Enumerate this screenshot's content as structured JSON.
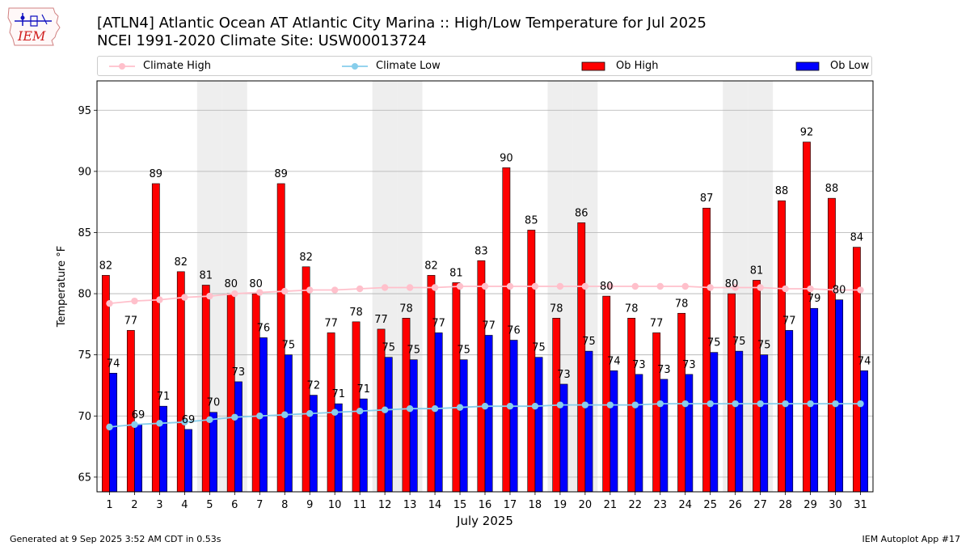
{
  "header": {
    "title_line1": "[ATLN4] Atlantic Ocean  AT Atlantic City Marina :: High/Low Temperature for Jul 2025",
    "title_line2": "NCEI 1991-2020 Climate Site: USW00013724"
  },
  "logo": {
    "text": "IEM",
    "icon": "iowa-state-weather-logo-icon"
  },
  "footer": {
    "left": "Generated at 9 Sep 2025 3:52 AM CDT in 0.53s",
    "right": "IEM Autoplot App #17"
  },
  "legend": {
    "placement": "top",
    "items": [
      {
        "label": "Climate High",
        "kind": "line",
        "color": "#ffc0cb"
      },
      {
        "label": "Climate Low",
        "kind": "line",
        "color": "#87ceeb"
      },
      {
        "label": "Ob High",
        "kind": "bar",
        "color": "#ff0000"
      },
      {
        "label": "Ob Low",
        "kind": "bar",
        "color": "#0000ff"
      }
    ]
  },
  "chart_data": {
    "type": "bar",
    "xlabel": "July 2025",
    "ylabel": "Temperature °F",
    "ylim": [
      63.8,
      97.4
    ],
    "yticks": [
      65,
      70,
      75,
      80,
      85,
      90,
      95
    ],
    "grid": true,
    "weekend_shading_days": [
      5,
      6,
      12,
      13,
      19,
      20,
      26,
      27
    ],
    "shade_color": "#eeeeee",
    "categories": [
      "1",
      "2",
      "3",
      "4",
      "5",
      "6",
      "7",
      "8",
      "9",
      "10",
      "11",
      "12",
      "13",
      "14",
      "15",
      "16",
      "17",
      "18",
      "19",
      "20",
      "21",
      "22",
      "23",
      "24",
      "25",
      "26",
      "27",
      "28",
      "29",
      "30",
      "31"
    ],
    "series": [
      {
        "name": "Ob High",
        "kind": "bar",
        "color": "#ff0000",
        "values": [
          81.5,
          77.0,
          89.0,
          81.8,
          80.7,
          80.0,
          80.0,
          89.0,
          82.2,
          76.8,
          77.7,
          77.1,
          78.0,
          81.5,
          80.9,
          82.7,
          90.3,
          85.2,
          78.0,
          85.8,
          79.8,
          78.0,
          76.8,
          78.4,
          87.0,
          80.0,
          81.1,
          87.6,
          92.4,
          87.8,
          83.8
        ],
        "labels": [
          "82",
          "77",
          "89",
          "82",
          "81",
          "80",
          "80",
          "89",
          "82",
          "77",
          "78",
          "77",
          "78",
          "82",
          "81",
          "83",
          "90",
          "85",
          "78",
          "86",
          "80",
          "78",
          "77",
          "78",
          "87",
          "80",
          "81",
          "88",
          "92",
          "88",
          "84"
        ]
      },
      {
        "name": "Ob Low",
        "kind": "bar",
        "color": "#0000ff",
        "values": [
          73.5,
          69.3,
          70.8,
          68.9,
          70.3,
          72.8,
          76.4,
          75.0,
          71.7,
          71.0,
          71.4,
          74.8,
          74.6,
          76.8,
          74.6,
          76.6,
          76.2,
          74.8,
          72.6,
          75.3,
          73.7,
          73.4,
          73.0,
          73.4,
          75.2,
          75.3,
          75.0,
          77.0,
          78.8,
          79.5,
          73.7
        ],
        "labels": [
          "74",
          "69",
          "71",
          "69",
          "70",
          "73",
          "76",
          "75",
          "72",
          "71",
          "71",
          "75",
          "75",
          "77",
          "75",
          "77",
          "76",
          "75",
          "73",
          "75",
          "74",
          "73",
          "73",
          "73",
          "75",
          "75",
          "75",
          "77",
          "79",
          "80",
          "74"
        ]
      },
      {
        "name": "Climate High",
        "kind": "line",
        "color": "#ffc0cb",
        "values": [
          79.2,
          79.4,
          79.5,
          79.7,
          79.8,
          80.0,
          80.1,
          80.2,
          80.3,
          80.3,
          80.4,
          80.5,
          80.5,
          80.5,
          80.6,
          80.6,
          80.6,
          80.6,
          80.6,
          80.6,
          80.6,
          80.6,
          80.6,
          80.6,
          80.5,
          80.5,
          80.5,
          80.4,
          80.4,
          80.3,
          80.3
        ]
      },
      {
        "name": "Climate Low",
        "kind": "line",
        "color": "#87ceeb",
        "values": [
          69.1,
          69.3,
          69.4,
          69.5,
          69.7,
          69.9,
          70.0,
          70.1,
          70.2,
          70.3,
          70.4,
          70.5,
          70.6,
          70.6,
          70.7,
          70.8,
          70.8,
          70.8,
          70.9,
          70.9,
          70.9,
          70.9,
          71.0,
          71.0,
          71.0,
          71.0,
          71.0,
          71.0,
          71.0,
          71.0,
          71.0
        ]
      }
    ]
  }
}
